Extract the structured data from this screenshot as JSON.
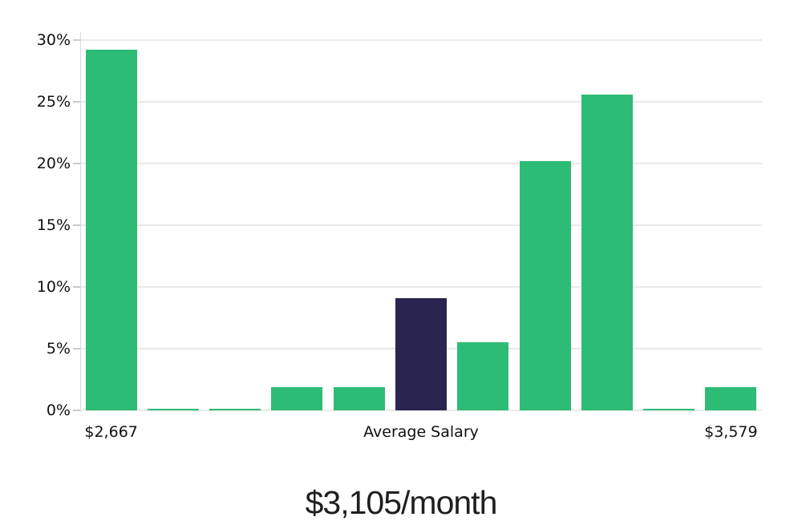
{
  "chart_data": {
    "type": "bar",
    "title": "$3,105/month",
    "xlabel": "",
    "ylabel": "",
    "ylim": [
      0,
      30
    ],
    "grid": true,
    "legend": "none",
    "y_ticks": [
      {
        "value": 0,
        "label": "0%"
      },
      {
        "value": 5,
        "label": "5%"
      },
      {
        "value": 10,
        "label": "10%"
      },
      {
        "value": 15,
        "label": "15%"
      },
      {
        "value": 20,
        "label": "20%"
      },
      {
        "value": 25,
        "label": "25%"
      },
      {
        "value": 30,
        "label": "30%"
      }
    ],
    "bars": [
      {
        "value": 29.2,
        "role": "salary-bin"
      },
      {
        "value": 0.1,
        "role": "salary-bin"
      },
      {
        "value": 0.1,
        "role": "salary-bin"
      },
      {
        "value": 1.9,
        "role": "salary-bin"
      },
      {
        "value": 1.9,
        "role": "salary-bin"
      },
      {
        "value": 9.1,
        "role": "average-salary-bin"
      },
      {
        "value": 5.5,
        "role": "salary-bin"
      },
      {
        "value": 20.2,
        "role": "salary-bin"
      },
      {
        "value": 25.6,
        "role": "salary-bin"
      },
      {
        "value": 0.1,
        "role": "salary-bin"
      },
      {
        "value": 1.9,
        "role": "salary-bin"
      }
    ],
    "x_annotations": [
      {
        "bar_index": 0,
        "label": "$2,667"
      },
      {
        "bar_index": 5,
        "label": "Average Salary"
      },
      {
        "bar_index": 10,
        "label": "$3,579"
      }
    ],
    "colors": {
      "bar": "#2dbc76",
      "average_bar": "#2a2550",
      "gridline": "#e9e9e9",
      "axis_line": "#d9d9d9",
      "tick_mark": "#cccccc",
      "axis_text": "#111111",
      "title_text": "#1f1f1f",
      "background": "#ffffff"
    }
  }
}
